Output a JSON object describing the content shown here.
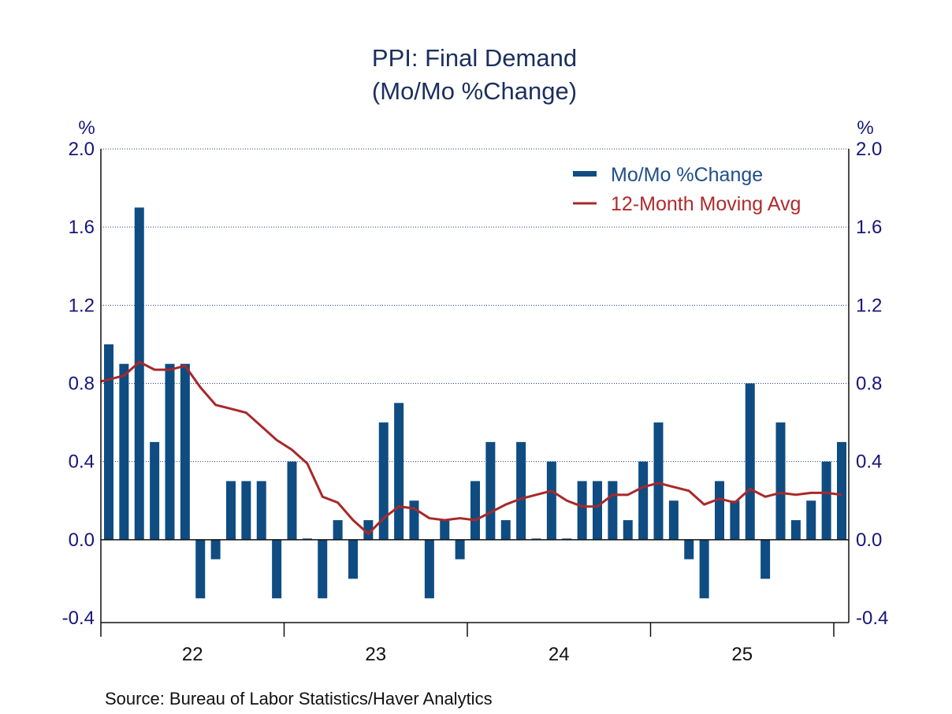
{
  "chart_data": {
    "type": "bar",
    "title": "PPI: Final Demand",
    "subtitle": "(Mo/Mo %Change)",
    "ylabel_left": "%",
    "ylabel_right": "%",
    "ylim": [
      -0.4,
      2.0
    ],
    "yticks": [
      "2.0",
      "1.6",
      "1.2",
      "0.8",
      "0.4",
      "0.0",
      "-0.4"
    ],
    "ytick_values": [
      2.0,
      1.6,
      1.2,
      0.8,
      0.4,
      0.0,
      -0.4
    ],
    "xtick_labels": [
      "22",
      "23",
      "24",
      "25"
    ],
    "grid": true,
    "legend_placement": "top-right",
    "colors": {
      "bars": "#0f4c81",
      "line": "#a8282a"
    },
    "series": [
      {
        "name": "Mo/Mo %Change",
        "kind": "bar",
        "values": [
          1.0,
          0.9,
          1.7,
          0.5,
          0.9,
          0.9,
          -0.3,
          -0.1,
          0.3,
          0.3,
          0.3,
          -0.3,
          0.4,
          0.0,
          -0.3,
          0.1,
          -0.2,
          0.1,
          0.6,
          0.7,
          0.2,
          -0.3,
          0.1,
          -0.1,
          0.3,
          0.5,
          0.1,
          0.5,
          0.0,
          0.4,
          0.0,
          0.3,
          0.3,
          0.3,
          0.1,
          0.4,
          0.6,
          0.2,
          -0.1,
          -0.3,
          0.3,
          0.2,
          0.8,
          -0.2,
          0.6,
          0.1,
          0.2,
          0.4,
          0.5
        ]
      },
      {
        "name": "12-Month Moving Avg",
        "kind": "line",
        "values": [
          0.82,
          0.84,
          0.91,
          0.87,
          0.87,
          0.89,
          0.78,
          0.69,
          0.67,
          0.65,
          0.58,
          0.51,
          0.46,
          0.39,
          0.22,
          0.19,
          0.1,
          0.03,
          0.11,
          0.17,
          0.16,
          0.11,
          0.1,
          0.11,
          0.1,
          0.14,
          0.18,
          0.21,
          0.23,
          0.25,
          0.2,
          0.17,
          0.17,
          0.23,
          0.23,
          0.27,
          0.29,
          0.27,
          0.25,
          0.18,
          0.21,
          0.19,
          0.26,
          0.22,
          0.24,
          0.23,
          0.24,
          0.24,
          0.23
        ]
      }
    ]
  },
  "source": "Source:  Bureau of Labor Statistics/Haver Analytics"
}
